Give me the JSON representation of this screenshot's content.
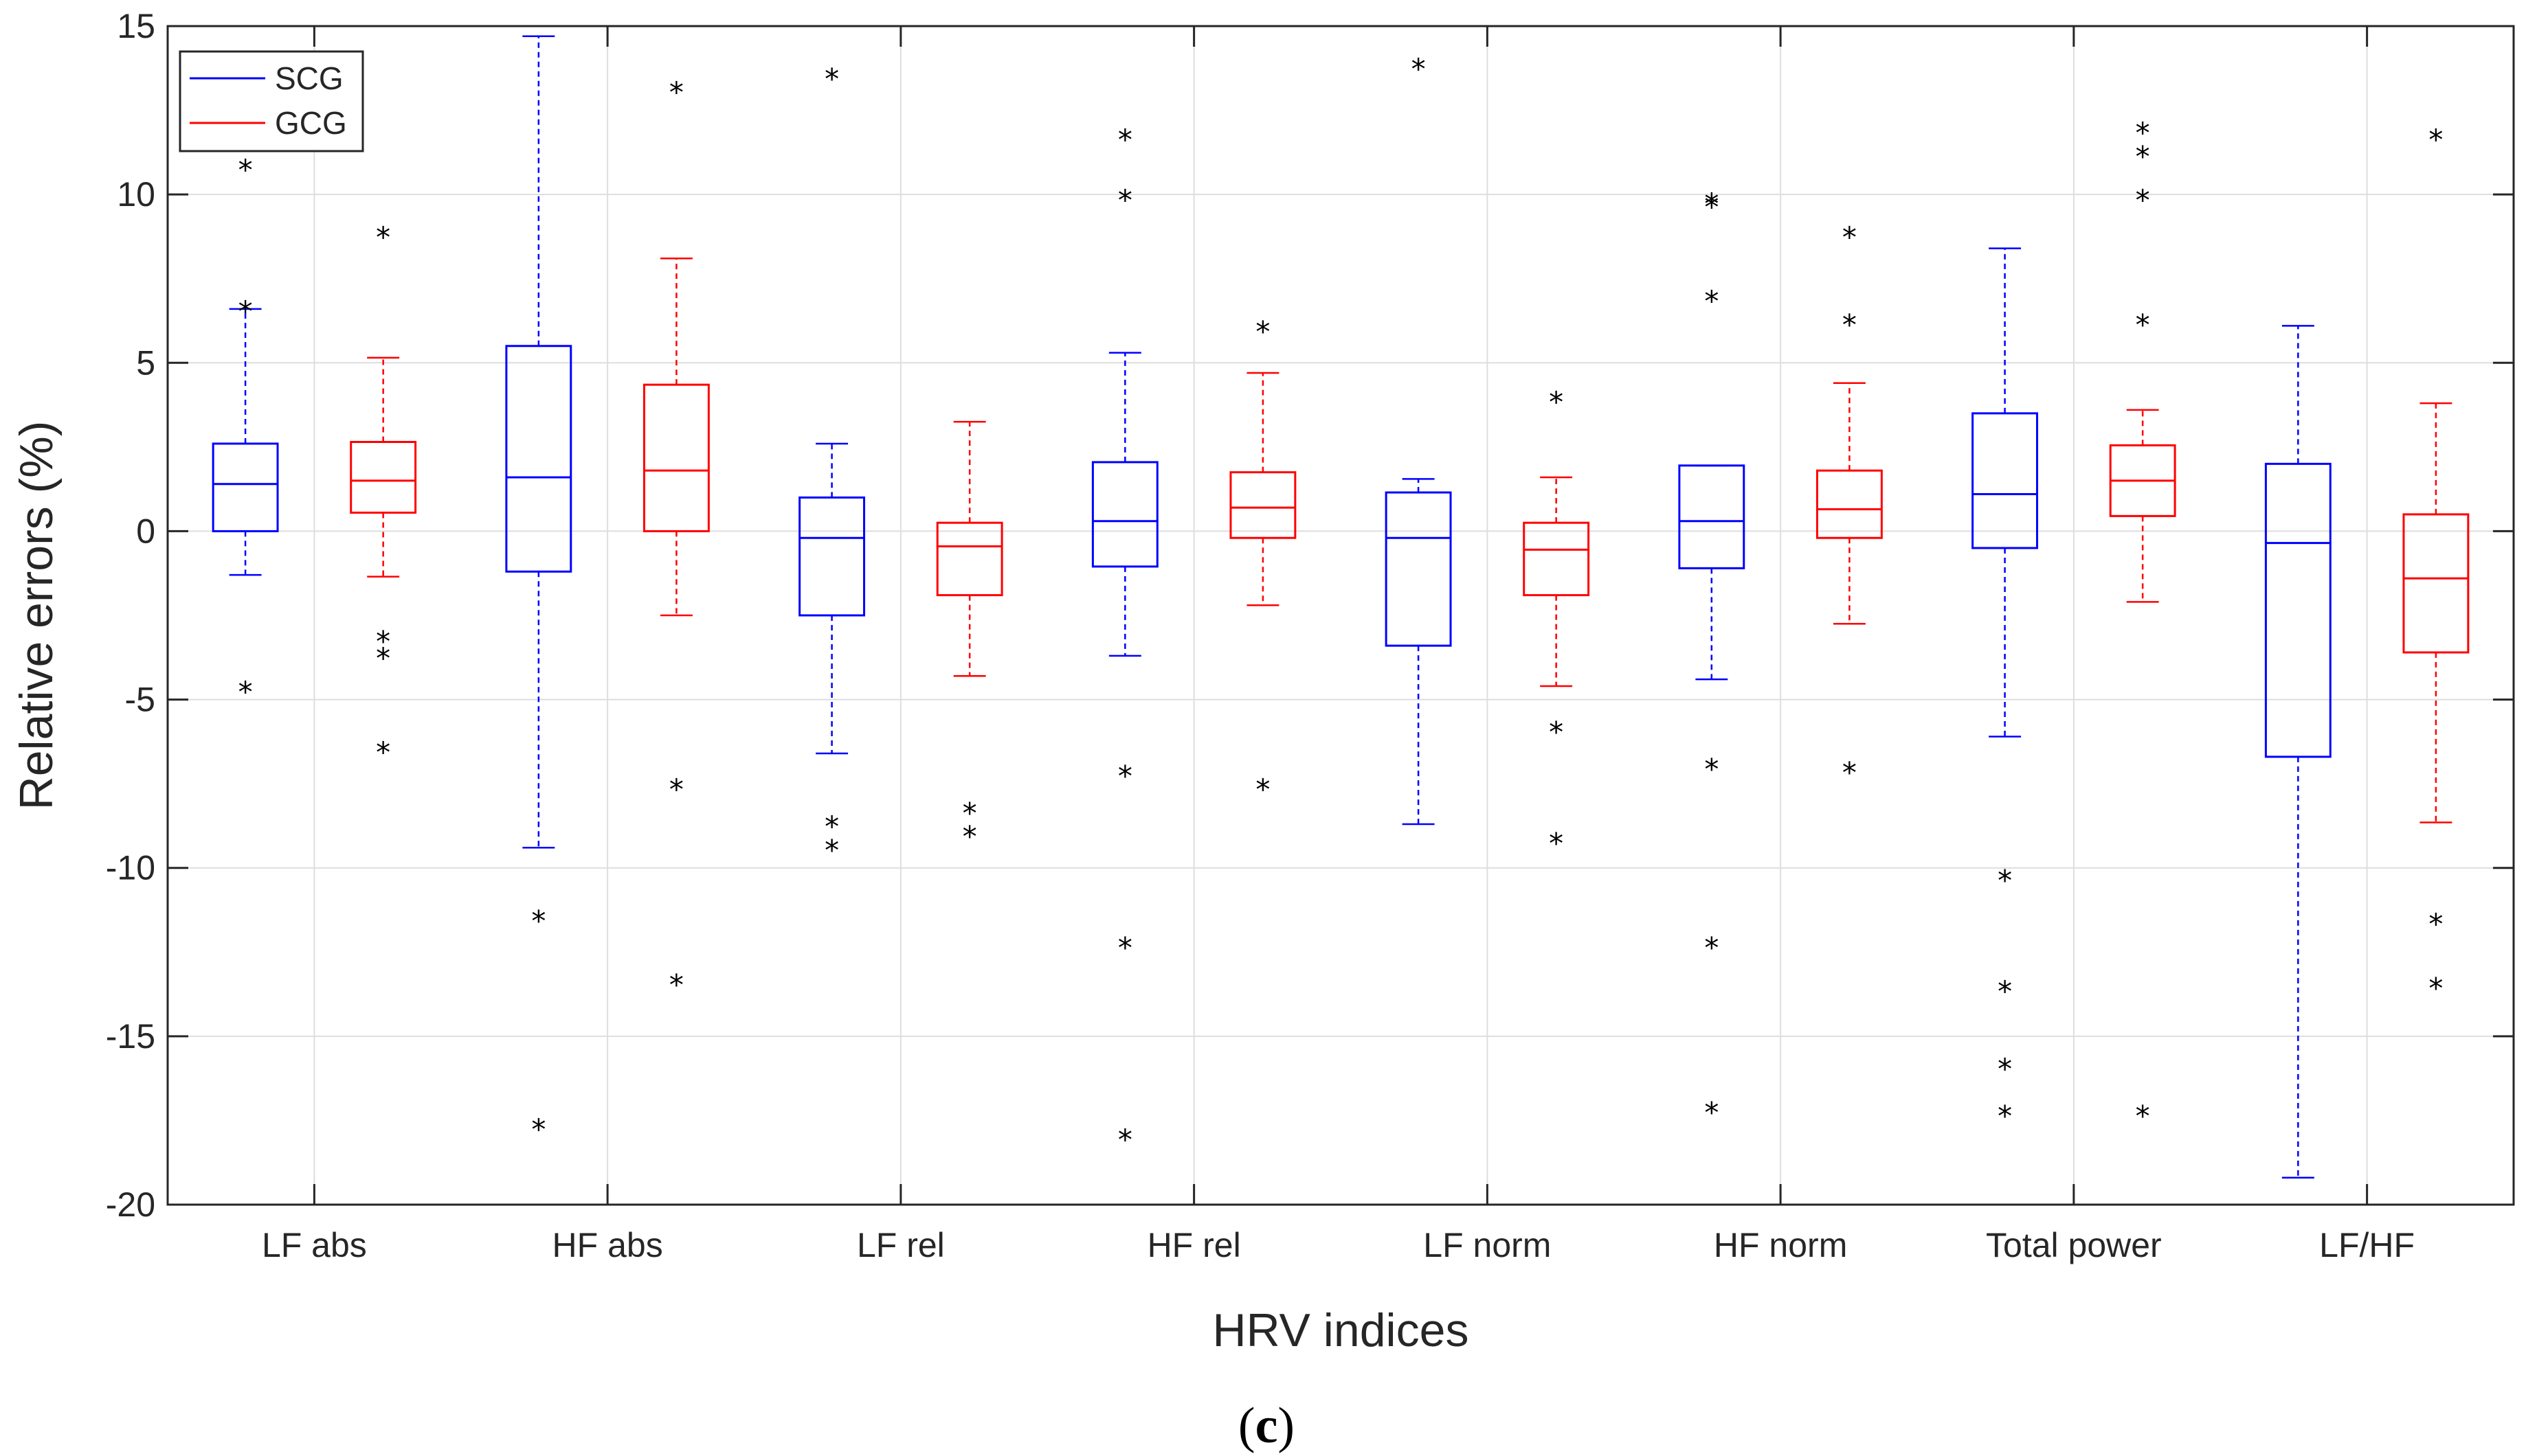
{
  "chart_data": {
    "type": "box",
    "title": "",
    "panel_label": "(c)",
    "panel_letter": "c",
    "xlabel": "HRV indices",
    "ylabel": "Relative errors (%)",
    "ylim": [
      -20,
      15
    ],
    "yticks": [
      -20,
      -15,
      -10,
      -5,
      0,
      5,
      10,
      15
    ],
    "ytick_labels": [
      "-20",
      "-15",
      "-10",
      "-5",
      "0",
      "5",
      "10",
      "15"
    ],
    "grid": true,
    "legend_position": "top-left",
    "categories": [
      "LF abs",
      "HF abs",
      "LF rel",
      "HF rel",
      "LF norm",
      "HF norm",
      "Total power",
      "LF/HF"
    ],
    "series": [
      {
        "name": "SCG",
        "color": "#0000ff",
        "boxes": [
          {
            "category": "LF abs",
            "whisker_low": -1.3,
            "q1": 0.0,
            "median": 1.4,
            "q3": 2.6,
            "whisker_high": 6.6,
            "outliers": [
              10.8,
              6.6,
              -4.7
            ]
          },
          {
            "category": "HF abs",
            "whisker_low": -9.4,
            "q1": -1.2,
            "median": 1.6,
            "q3": 5.5,
            "whisker_high": 14.7,
            "outliers": [
              -11.5,
              -17.7
            ]
          },
          {
            "category": "LF rel",
            "whisker_low": -6.6,
            "q1": -2.5,
            "median": -0.2,
            "q3": 1.0,
            "whisker_high": 2.6,
            "outliers": [
              13.5,
              -8.7,
              -9.4
            ]
          },
          {
            "category": "HF rel",
            "whisker_low": -3.7,
            "q1": -1.05,
            "median": 0.3,
            "q3": 2.05,
            "whisker_high": 5.3,
            "outliers": [
              11.7,
              9.9,
              -7.2,
              -12.3,
              -18.0
            ]
          },
          {
            "category": "LF norm",
            "whisker_low": -8.7,
            "q1": -3.4,
            "median": -0.2,
            "q3": 1.15,
            "whisker_high": 1.55,
            "outliers": [
              13.8
            ]
          },
          {
            "category": "HF norm",
            "whisker_low": -4.4,
            "q1": -1.1,
            "median": 0.3,
            "q3": 1.95,
            "whisker_high": 1.95,
            "outliers": [
              9.8,
              9.7,
              6.9,
              -7.0,
              -12.3,
              -17.2
            ]
          },
          {
            "category": "Total power",
            "whisker_low": -6.1,
            "q1": -0.5,
            "median": 1.1,
            "q3": 3.5,
            "whisker_high": 8.4,
            "outliers": [
              -10.3,
              -13.6,
              -15.9,
              -17.3
            ]
          },
          {
            "category": "LF/HF",
            "whisker_low": -19.2,
            "q1": -6.7,
            "median": -0.35,
            "q3": 2.0,
            "whisker_high": 6.1,
            "outliers": []
          }
        ]
      },
      {
        "name": "GCG",
        "color": "#ff0000",
        "boxes": [
          {
            "category": "LF abs",
            "whisker_low": -1.35,
            "q1": 0.55,
            "median": 1.5,
            "q3": 2.65,
            "whisker_high": 5.15,
            "outliers": [
              8.8,
              -3.2,
              -3.7,
              -6.5
            ]
          },
          {
            "category": "HF abs",
            "whisker_low": -2.5,
            "q1": 0.0,
            "median": 1.8,
            "q3": 4.35,
            "whisker_high": 8.1,
            "outliers": [
              13.1,
              -7.6,
              -13.4
            ]
          },
          {
            "category": "LF rel",
            "whisker_low": -4.3,
            "q1": -1.9,
            "median": -0.45,
            "q3": 0.25,
            "whisker_high": 3.25,
            "outliers": [
              -8.3,
              -9.0
            ]
          },
          {
            "category": "HF rel",
            "whisker_low": -2.2,
            "q1": -0.2,
            "median": 0.7,
            "q3": 1.75,
            "whisker_high": 4.7,
            "outliers": [
              6.0,
              -7.6
            ]
          },
          {
            "category": "LF norm",
            "whisker_low": -4.6,
            "q1": -1.9,
            "median": -0.55,
            "q3": 0.25,
            "whisker_high": 1.6,
            "outliers": [
              3.9,
              -5.9,
              -9.2
            ]
          },
          {
            "category": "HF norm",
            "whisker_low": -2.75,
            "q1": -0.2,
            "median": 0.65,
            "q3": 1.8,
            "whisker_high": 4.4,
            "outliers": [
              8.8,
              6.2,
              -7.1
            ]
          },
          {
            "category": "Total power",
            "whisker_low": -2.1,
            "q1": 0.45,
            "median": 1.5,
            "q3": 2.55,
            "whisker_high": 3.6,
            "outliers": [
              11.9,
              11.2,
              9.9,
              6.2,
              -17.3
            ]
          },
          {
            "category": "LF/HF",
            "whisker_low": -8.65,
            "q1": -3.6,
            "median": -1.4,
            "q3": 0.5,
            "whisker_high": 3.8,
            "outliers": [
              11.7,
              -11.6,
              -13.5
            ]
          }
        ]
      }
    ]
  }
}
